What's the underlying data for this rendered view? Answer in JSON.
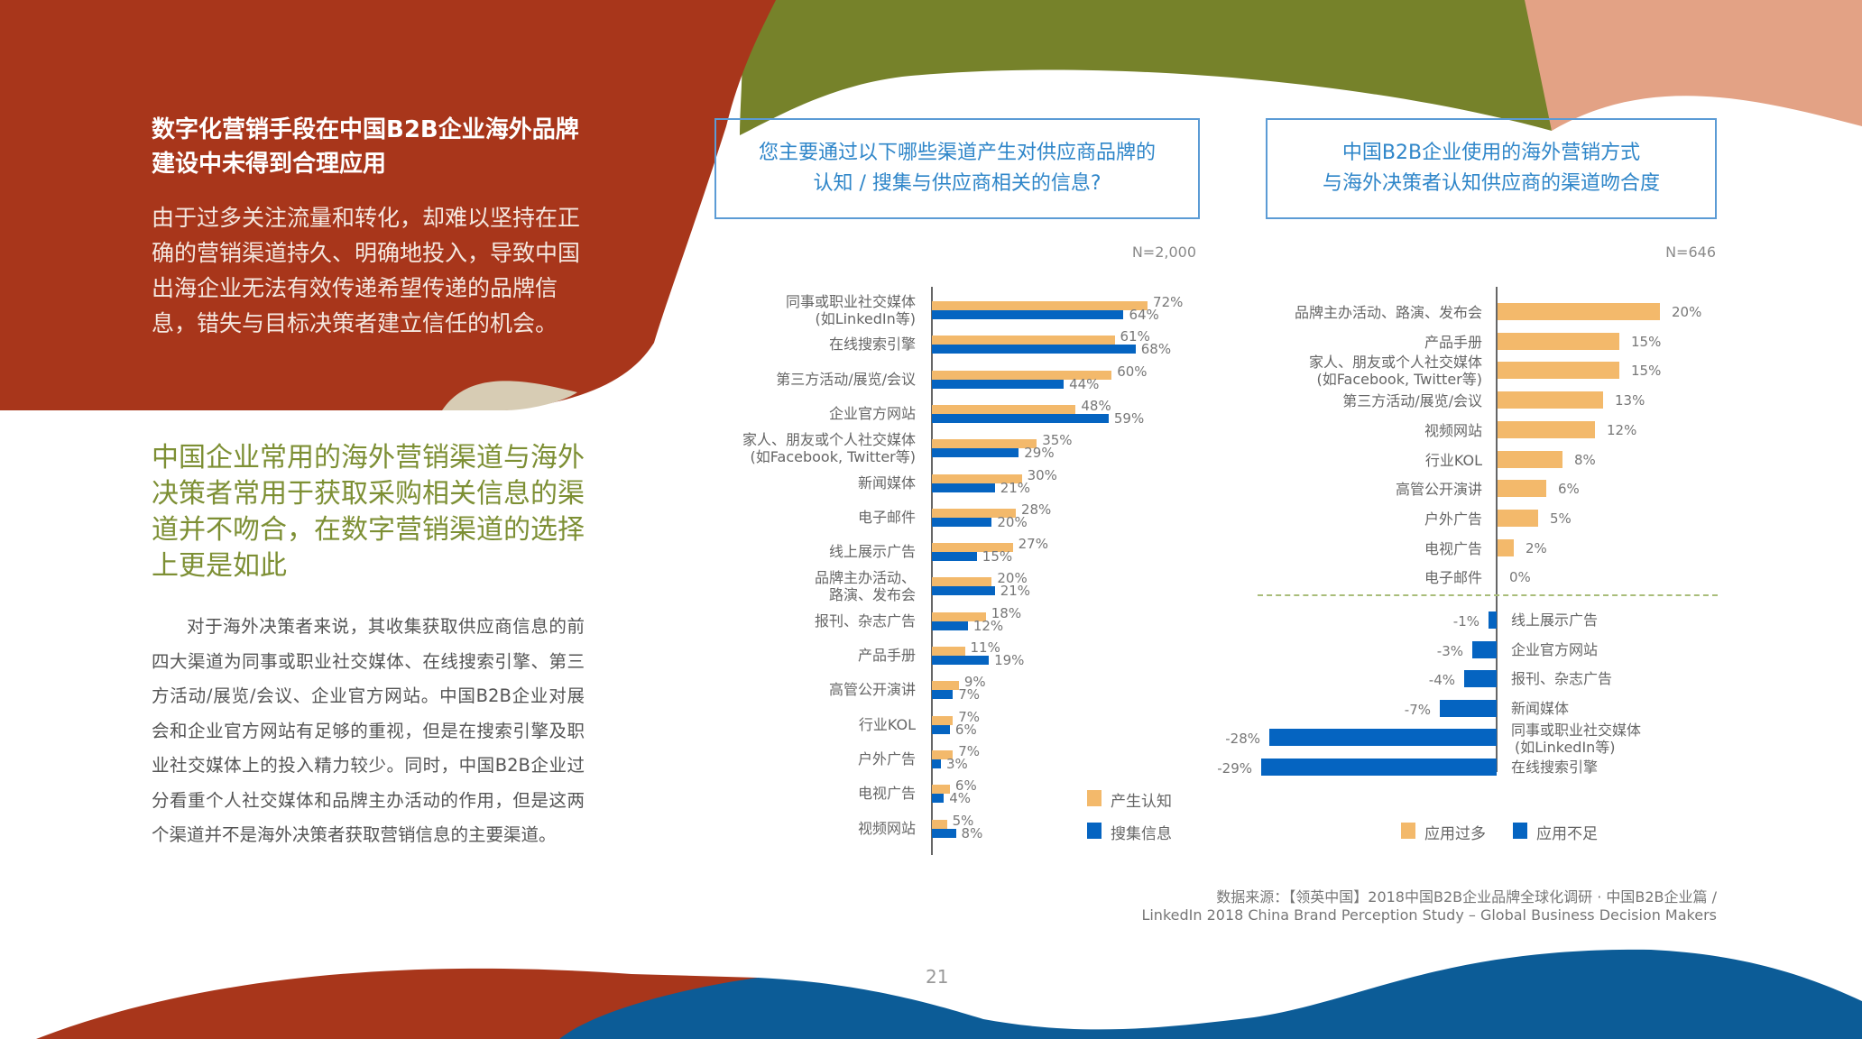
{
  "left_panel": {
    "title": "数字化营销手段在中国B2B企业海外品牌建设中未得到合理应用",
    "intro": "由于过多关注流量和转化，却难以坚持在正确的营销渠道持久、明确地投入，导致中国出海企业无法有效传递希望传递的品牌信息，错失与目标决策者建立信任的机会。",
    "headline": "中国企业常用的海外营销渠道与海外决策者常用于获取采购相关信息的渠道并不吻合，在数字营销渠道的选择上更是如此",
    "body": "对于海外决策者来说，其收集获取供应商信息的前四大渠道为同事或职业社交媒体、在线搜索引擎、第三方活动/展览/会议、企业官方网站。中国B2B企业对展会和企业官方网站有足够的重视，但是在搜索引擎及职业社交媒体上的投入精力较少。同时，中国B2B企业过分看重个人社交媒体和品牌主办活动的作用，但是这两个渠道并不是海外决策者获取营销信息的主要渠道。"
  },
  "colors": {
    "red_bg": "#a8361b",
    "olive": "#76822a",
    "blue_shape": "#0c5c97",
    "peach": "#e3a285",
    "beige": "#d7ccb4",
    "bar_orange": "#f3b96b",
    "bar_blue": "#0564c1",
    "title_blue": "#2f86c9",
    "green_text": "#7d8f34"
  },
  "chart_data": [
    {
      "type": "bar",
      "orientation": "horizontal",
      "title": "您主要通过以下哪些渠道产生对供应商品牌的认知 / 搜集与供应商相关的信息?",
      "sample": "N=2,000",
      "categories": [
        "同事或职业社交媒体 (如LinkedIn等)",
        "在线搜索引擎",
        "第三方活动/展览/会议",
        "企业官方网站",
        "家人、朋友或个人社交媒体 (如Facebook, Twitter等)",
        "新闻媒体",
        "电子邮件",
        "线上展示广告",
        "品牌主办活动、路演、发布会",
        "报刊、杂志广告",
        "产品手册",
        "高管公开演讲",
        "行业KOL",
        "户外广告",
        "电视广告",
        "视频网站"
      ],
      "series": [
        {
          "name": "产生认知",
          "color": "#f3b96b",
          "values": [
            72,
            61,
            60,
            48,
            35,
            30,
            28,
            27,
            20,
            18,
            11,
            9,
            7,
            7,
            6,
            5
          ]
        },
        {
          "name": "搜集信息",
          "color": "#0564c1",
          "values": [
            64,
            68,
            44,
            59,
            29,
            21,
            20,
            15,
            21,
            12,
            19,
            7,
            6,
            3,
            4,
            8
          ]
        }
      ],
      "unit": "%",
      "legend_position": "bottom-right",
      "grid": false
    },
    {
      "type": "bar",
      "orientation": "horizontal",
      "title": "中国B2B企业使用的海外营销方式与海外决策者认知供应商的渠道吻合度",
      "sample": "N=646",
      "categories": [
        "品牌主办活动、路演、发布会",
        "产品手册",
        "家人、朋友或个人社交媒体 (如Facebook, Twitter等)",
        "第三方活动/展览/会议",
        "视频网站",
        "行业KOL",
        "高管公开演讲",
        "户外广告",
        "电视广告",
        "电子邮件",
        "线上展示广告",
        "企业官方网站",
        "报刊、杂志广告",
        "新闻媒体",
        "同事或职业社交媒体 (如LinkedIn等)",
        "在线搜索引擎"
      ],
      "values": [
        20,
        15,
        15,
        13,
        12,
        8,
        6,
        5,
        2,
        0,
        -1,
        -3,
        -4,
        -7,
        -28,
        -29
      ],
      "series": [
        {
          "name": "应用过多",
          "color": "#f3b96b"
        },
        {
          "name": "应用不足",
          "color": "#0564c1"
        }
      ],
      "unit": "%",
      "legend_position": "bottom",
      "grid": false
    }
  ],
  "chart1": {
    "title_line1": "您主要通过以下哪些渠道产生对供应商品牌的",
    "title_line2": "认知 / 搜集与供应商相关的信息?",
    "n": "N=2,000",
    "rows": [
      {
        "l1": "同事或职业社交媒体",
        "l2": "(如LinkedIn等)",
        "a": 72,
        "b": 64,
        "al": "72%",
        "bl": "64%"
      },
      {
        "l1": "在线搜索引擎",
        "l2": "",
        "a": 61,
        "b": 68,
        "al": "61%",
        "bl": "68%"
      },
      {
        "l1": "第三方活动/展览/会议",
        "l2": "",
        "a": 60,
        "b": 44,
        "al": "60%",
        "bl": "44%"
      },
      {
        "l1": "企业官方网站",
        "l2": "",
        "a": 48,
        "b": 59,
        "al": "48%",
        "bl": "59%"
      },
      {
        "l1": "家人、朋友或个人社交媒体",
        "l2": "(如Facebook, Twitter等)",
        "a": 35,
        "b": 29,
        "al": "35%",
        "bl": "29%"
      },
      {
        "l1": "新闻媒体",
        "l2": "",
        "a": 30,
        "b": 21,
        "al": "30%",
        "bl": "21%"
      },
      {
        "l1": "电子邮件",
        "l2": "",
        "a": 28,
        "b": 20,
        "al": "28%",
        "bl": "20%"
      },
      {
        "l1": "线上展示广告",
        "l2": "",
        "a": 27,
        "b": 15,
        "al": "27%",
        "bl": "15%"
      },
      {
        "l1": "品牌主办活动、",
        "l2": "路演、发布会",
        "a": 20,
        "b": 21,
        "al": "20%",
        "bl": "21%"
      },
      {
        "l1": "报刊、杂志广告",
        "l2": "",
        "a": 18,
        "b": 12,
        "al": "18%",
        "bl": "12%"
      },
      {
        "l1": "产品手册",
        "l2": "",
        "a": 11,
        "b": 19,
        "al": "11%",
        "bl": "19%"
      },
      {
        "l1": "高管公开演讲",
        "l2": "",
        "a": 9,
        "b": 7,
        "al": "9%",
        "bl": "7%"
      },
      {
        "l1": "行业KOL",
        "l2": "",
        "a": 7,
        "b": 6,
        "al": "7%",
        "bl": "6%"
      },
      {
        "l1": "户外广告",
        "l2": "",
        "a": 7,
        "b": 3,
        "al": "7%",
        "bl": "3%"
      },
      {
        "l1": "电视广告",
        "l2": "",
        "a": 6,
        "b": 4,
        "al": "6%",
        "bl": "4%"
      },
      {
        "l1": "视频网站",
        "l2": "",
        "a": 5,
        "b": 8,
        "al": "5%",
        "bl": "8%"
      }
    ],
    "legend": {
      "a": "产生认知",
      "b": "搜集信息"
    }
  },
  "chart2": {
    "title_line1": "中国B2B企业使用的海外营销方式",
    "title_line2": "与海外决策者认知供应商的渠道吻合度",
    "n": "N=646",
    "pos_rows": [
      {
        "l1": "品牌主办活动、路演、发布会",
        "l2": "",
        "v": 20,
        "vl": "20%"
      },
      {
        "l1": "产品手册",
        "l2": "",
        "v": 15,
        "vl": "15%"
      },
      {
        "l1": "家人、朋友或个人社交媒体",
        "l2": "(如Facebook, Twitter等)",
        "v": 15,
        "vl": "15%"
      },
      {
        "l1": "第三方活动/展览/会议",
        "l2": "",
        "v": 13,
        "vl": "13%"
      },
      {
        "l1": "视频网站",
        "l2": "",
        "v": 12,
        "vl": "12%"
      },
      {
        "l1": "行业KOL",
        "l2": "",
        "v": 8,
        "vl": "8%"
      },
      {
        "l1": "高管公开演讲",
        "l2": "",
        "v": 6,
        "vl": "6%"
      },
      {
        "l1": "户外广告",
        "l2": "",
        "v": 5,
        "vl": "5%"
      },
      {
        "l1": "电视广告",
        "l2": "",
        "v": 2,
        "vl": "2%"
      },
      {
        "l1": "电子邮件",
        "l2": "",
        "v": 0,
        "vl": "0%"
      }
    ],
    "neg_rows": [
      {
        "l1": "线上展示广告",
        "l2": "",
        "v": -1,
        "vl": "-1%"
      },
      {
        "l1": "企业官方网站",
        "l2": "",
        "v": -3,
        "vl": "-3%"
      },
      {
        "l1": "报刊、杂志广告",
        "l2": "",
        "v": -4,
        "vl": "-4%"
      },
      {
        "l1": "新闻媒体",
        "l2": "",
        "v": -7,
        "vl": "-7%"
      },
      {
        "l1": "同事或职业社交媒体",
        "l2": "(如LinkedIn等)",
        "v": -28,
        "vl": "-28%"
      },
      {
        "l1": "在线搜索引擎",
        "l2": "",
        "v": -29,
        "vl": "-29%"
      }
    ],
    "legend": {
      "a": "应用过多",
      "b": "应用不足"
    }
  },
  "source": {
    "line1": "数据来源：【领英中国】2018中国B2B企业品牌全球化调研 · 中国B2B企业篇 /",
    "line2": "LinkedIn 2018 China Brand Perception Study – Global Business Decision Makers"
  },
  "page_number": "21"
}
